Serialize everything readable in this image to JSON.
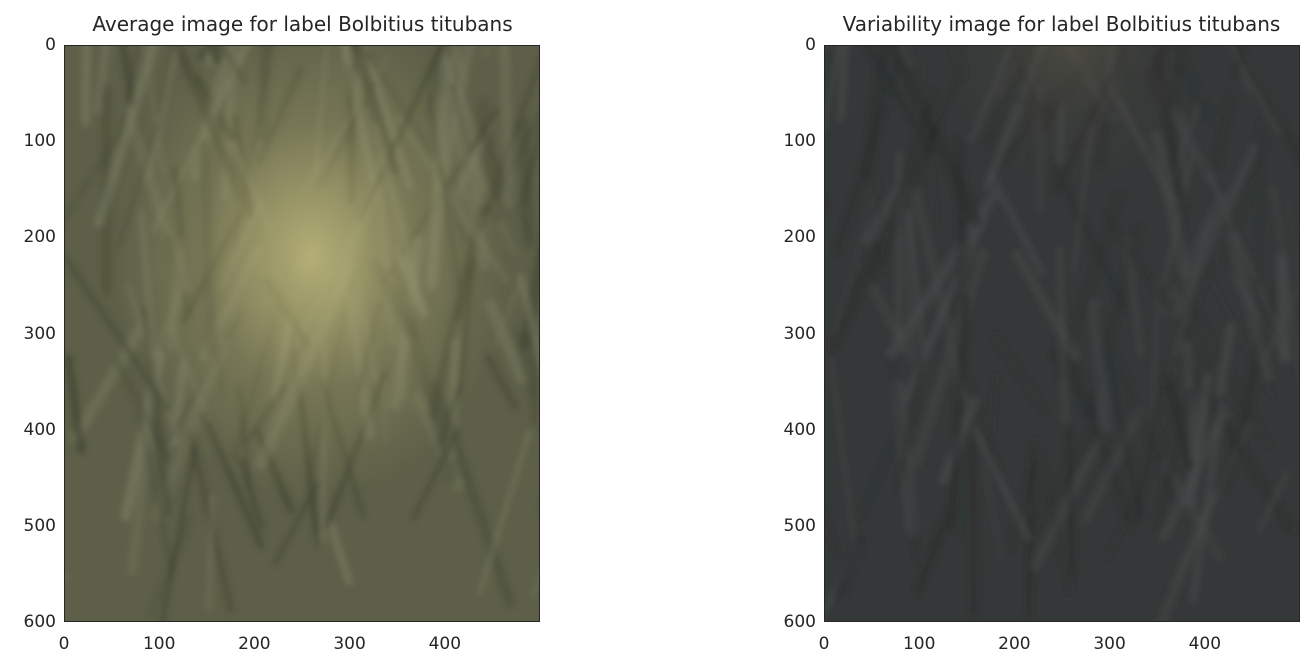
{
  "chart_data": [
    {
      "type": "heatmap",
      "title": "Average image for label Bolbitius titubans",
      "xlim": [
        0,
        500
      ],
      "ylim": [
        600,
        0
      ],
      "xticks": [
        "0",
        "100",
        "200",
        "300",
        "400"
      ],
      "yticks": [
        "0",
        "100",
        "200",
        "300",
        "400",
        "500",
        "600"
      ],
      "xtick_values": [
        0,
        100,
        200,
        300,
        400
      ],
      "ytick_values": [
        0,
        100,
        200,
        300,
        400,
        500,
        600
      ],
      "grid": false,
      "colors": {
        "background": "#5d5f48",
        "center_glow": "#c4bd7e",
        "dark_shade": "#3e4230",
        "light_shade": "#7c7e64"
      },
      "glow_center": [
        255,
        260
      ]
    },
    {
      "type": "heatmap",
      "title": "Variability image for label Bolbitius titubans",
      "xlim": [
        0,
        500
      ],
      "ylim": [
        600,
        0
      ],
      "xticks": [
        "0",
        "100",
        "200",
        "300",
        "400"
      ],
      "yticks": [
        "0",
        "100",
        "200",
        "300",
        "400",
        "500",
        "600"
      ],
      "xtick_values": [
        0,
        100,
        200,
        300,
        400
      ],
      "ytick_values": [
        0,
        100,
        200,
        300,
        400,
        500,
        600
      ],
      "grid": false,
      "colors": {
        "background": "#353838",
        "center_glow": "#5f5a48",
        "dark_shade": "#2a2c2c",
        "light_shade": "#4a4c4c"
      },
      "glow_center": [
        255,
        140
      ]
    }
  ]
}
